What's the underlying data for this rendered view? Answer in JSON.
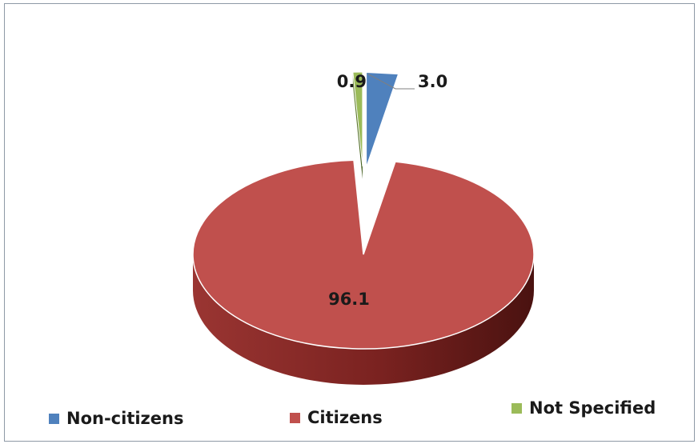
{
  "chart_data": {
    "type": "pie",
    "title": "",
    "style": "3d-exploded",
    "categories": [
      "Non-citizens",
      "Citizens",
      "Not Specified"
    ],
    "values": [
      3.0,
      96.1,
      0.9
    ],
    "data_labels": [
      "3.0",
      "96.1",
      "0.9"
    ],
    "colors": [
      "#4f81bd",
      "#c0504d",
      "#9bbb59"
    ],
    "legend": {
      "position": "bottom",
      "entries": [
        "Non-citizens",
        "Citizens",
        "Not Specified"
      ]
    }
  }
}
